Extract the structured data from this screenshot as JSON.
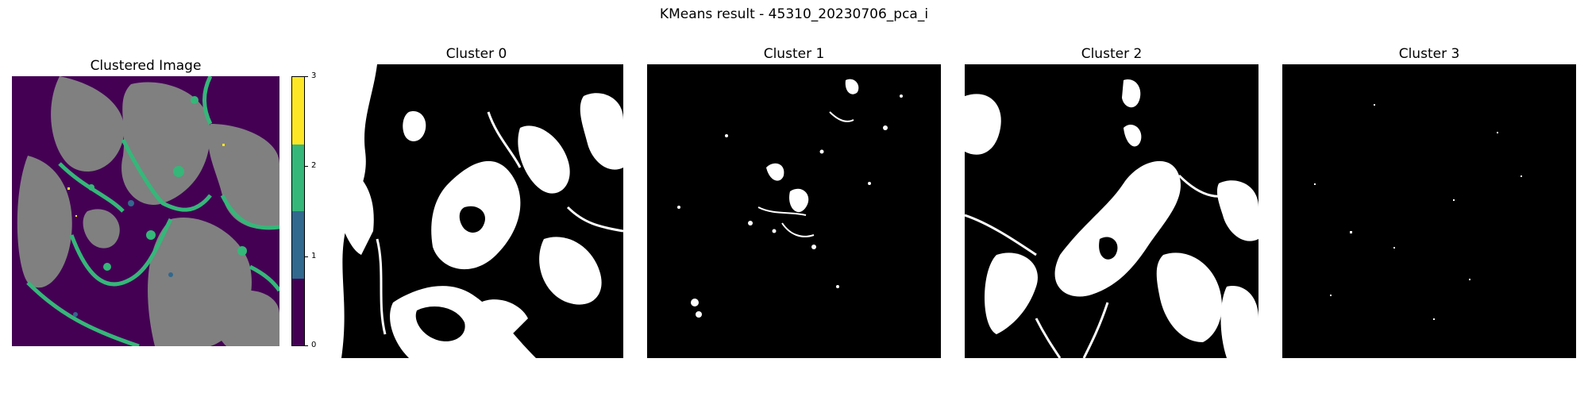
{
  "figure": {
    "title": "KMeans result - 45310_20230706_pca_i"
  },
  "panels": {
    "clustered": {
      "title": "Clustered Image"
    },
    "cluster0": {
      "title": "Cluster 0"
    },
    "cluster1": {
      "title": "Cluster 1"
    },
    "cluster2": {
      "title": "Cluster 2"
    },
    "cluster3": {
      "title": "Cluster 3"
    }
  },
  "colorbar": {
    "ticks": [
      "0",
      "1",
      "2",
      "3"
    ],
    "colors": [
      "#440154",
      "#31688e",
      "#35b779",
      "#fde725"
    ]
  },
  "palette": {
    "background_gray": "#808080",
    "cluster0": "#440154",
    "cluster1": "#31688e",
    "cluster2": "#35b779",
    "cluster3": "#fde725",
    "mask_on": "#ffffff",
    "mask_off": "#000000"
  }
}
